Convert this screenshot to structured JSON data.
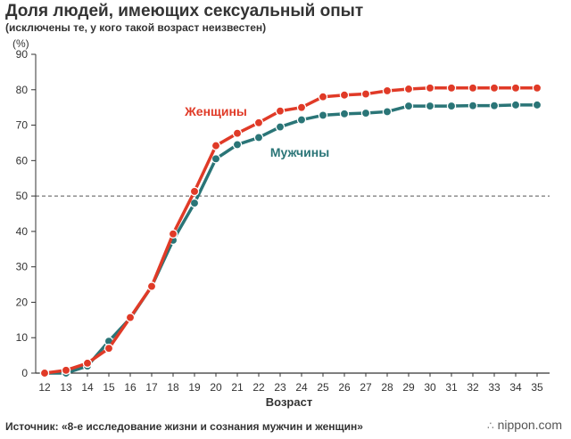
{
  "header": {
    "title": "Доля людей, имеющих сексуальный опыт",
    "subtitle": "(исключены те, у кого такой возраст неизвестен)",
    "unit": "(%)"
  },
  "footer": {
    "source": "Источник: «8-е исследование жизни и сознания мужчин и женщин»",
    "brand": "nippon.com",
    "brand_icon": "dots-logo-icon"
  },
  "colors": {
    "women": "#e03a27",
    "men": "#2a7577",
    "reference_line": "#555555",
    "axis": "#333333"
  },
  "chart_data": {
    "type": "line",
    "title": "Доля людей, имеющих сексуальный опыт",
    "subtitle": "(исключены те, у кого такой возраст неизвестен)",
    "xlabel": "Возраст",
    "ylabel": "(%)",
    "x": [
      12,
      13,
      14,
      15,
      16,
      17,
      18,
      19,
      20,
      21,
      22,
      23,
      24,
      25,
      26,
      27,
      28,
      29,
      30,
      31,
      32,
      33,
      34,
      35
    ],
    "ylim": [
      0,
      90
    ],
    "yticks": [
      0,
      10,
      20,
      30,
      40,
      50,
      60,
      70,
      80,
      90
    ],
    "grid": false,
    "reference_line": 50,
    "legend": "inline labels",
    "series": [
      {
        "name": "Мужчины",
        "color": "#2a7577",
        "values": [
          0,
          0,
          2,
          9,
          15.5,
          24.5,
          37.5,
          48,
          60.5,
          64.5,
          66.5,
          69.5,
          71.5,
          72.8,
          73.2,
          73.4,
          73.8,
          75.4,
          75.4,
          75.4,
          75.5,
          75.5,
          75.7,
          75.7
        ]
      },
      {
        "name": "Женщины",
        "color": "#e03a27",
        "values": [
          0,
          0.8,
          2.8,
          7,
          15.7,
          24.5,
          39.3,
          51.3,
          64.2,
          67.7,
          70.7,
          74,
          75,
          78,
          78.5,
          78.8,
          79.7,
          80.2,
          80.5,
          80.5,
          80.5,
          80.5,
          80.5,
          80.5
        ]
      }
    ]
  }
}
